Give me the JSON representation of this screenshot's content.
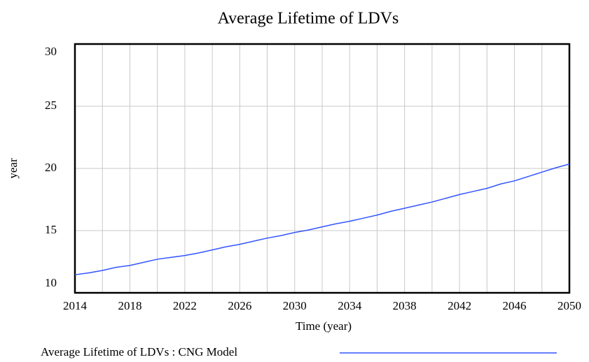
{
  "chart_data": {
    "type": "line",
    "title": "Average Lifetime of LDVs",
    "xlabel": "Time (year)",
    "ylabel": "year",
    "x": [
      2014,
      2015,
      2016,
      2017,
      2018,
      2019,
      2020,
      2021,
      2022,
      2023,
      2024,
      2025,
      2026,
      2027,
      2028,
      2029,
      2030,
      2031,
      2032,
      2033,
      2034,
      2035,
      2036,
      2037,
      2038,
      2039,
      2040,
      2041,
      2042,
      2043,
      2044,
      2045,
      2046,
      2047,
      2048,
      2049,
      2050
    ],
    "series": [
      {
        "name": "Average Lifetime of LDVs : CNG Model",
        "color": "#3355ff",
        "values": [
          11.45,
          11.6,
          11.8,
          12.05,
          12.2,
          12.45,
          12.7,
          12.85,
          13.0,
          13.2,
          13.45,
          13.7,
          13.9,
          14.15,
          14.4,
          14.6,
          14.85,
          15.05,
          15.3,
          15.55,
          15.75,
          16.0,
          16.25,
          16.55,
          16.8,
          17.05,
          17.3,
          17.6,
          17.9,
          18.15,
          18.4,
          18.75,
          19.0,
          19.35,
          19.7,
          20.05,
          20.35
        ]
      }
    ],
    "xlim": [
      2014,
      2050
    ],
    "xticks": [
      2014,
      2018,
      2022,
      2026,
      2030,
      2034,
      2038,
      2042,
      2046,
      2050
    ],
    "xminorticks": [
      2016,
      2020,
      2024,
      2028,
      2032,
      2036,
      2040,
      2044,
      2048
    ],
    "ylim": [
      10,
      30
    ],
    "yticks": [
      10,
      15,
      20,
      25,
      30
    ],
    "grid": true
  }
}
